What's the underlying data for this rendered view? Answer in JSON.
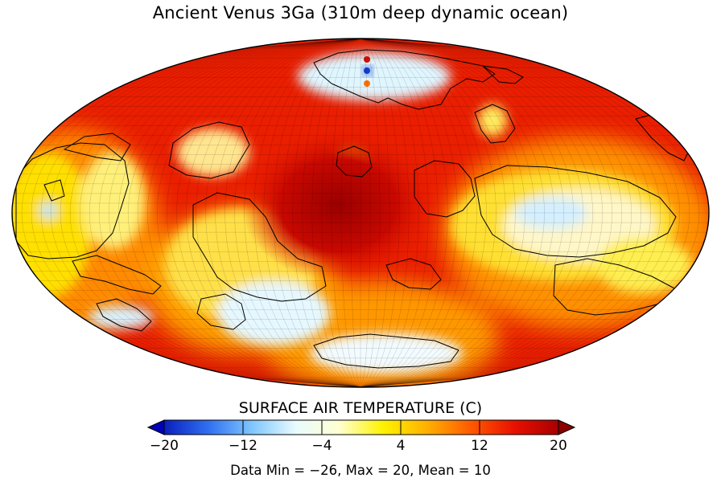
{
  "title": "Ancient Venus 3Ga (310m deep dynamic ocean)",
  "map": {
    "projection": "Mollweide",
    "variable": "surface air temperature",
    "units": "C"
  },
  "colorbar": {
    "title": "SURFACE AIR TEMPERATURE (C)",
    "min": -20,
    "max": 20,
    "extend": "both",
    "ticks": [
      {
        "value": -20,
        "label": "−20"
      },
      {
        "value": -12,
        "label": "−12"
      },
      {
        "value": -4,
        "label": "−4"
      },
      {
        "value": 4,
        "label": "4"
      },
      {
        "value": 12,
        "label": "12"
      },
      {
        "value": 20,
        "label": "20"
      }
    ],
    "colors": [
      "#0a1fbf",
      "#2f6ff0",
      "#7fc6ff",
      "#e8fbff",
      "#ffffd0",
      "#fff200",
      "#ffb000",
      "#ff5a00",
      "#e81000",
      "#a80000"
    ],
    "under_color": "#0000b4",
    "over_color": "#8a0000"
  },
  "stats": {
    "text": "Data Min = −26, Max = 20, Mean = 10"
  }
}
